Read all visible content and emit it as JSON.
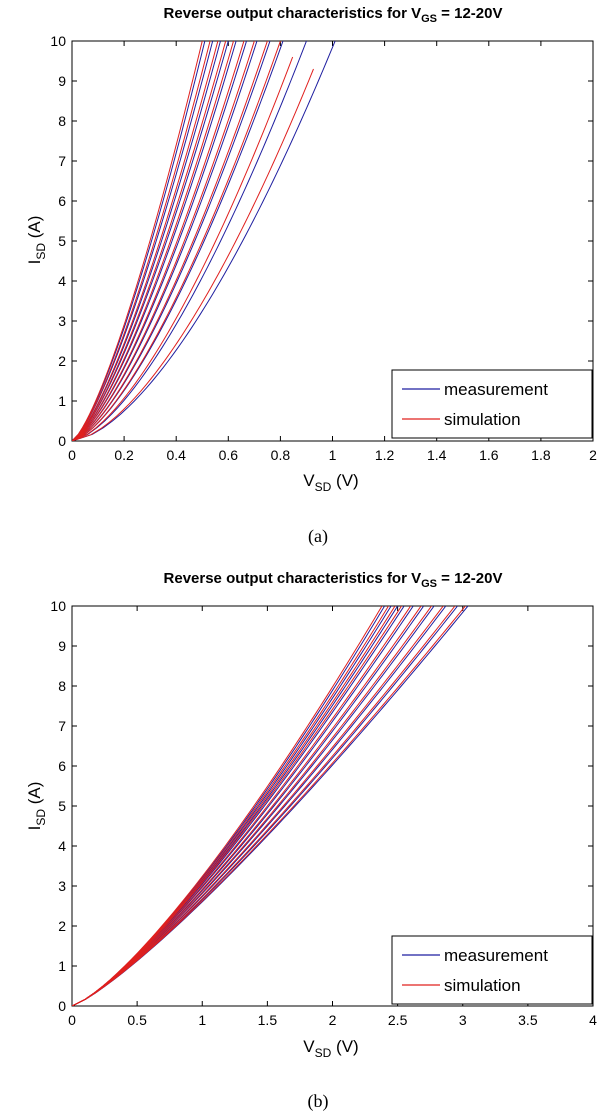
{
  "chart_data": [
    {
      "type": "line",
      "panel_label": "(a)",
      "title": {
        "main": "Reverse output characteristics for V",
        "sub": "GS",
        "tail": " = 12-20V"
      },
      "xlabel": {
        "main": "V",
        "sub": "SD",
        "tail": " (V)"
      },
      "ylabel": {
        "main": "I",
        "sub": "SD",
        "tail": " (A)"
      },
      "xlim": [
        0,
        2
      ],
      "ylim": [
        0,
        10
      ],
      "xticks": [
        0,
        0.2,
        0.4,
        0.6,
        0.8,
        1,
        1.2,
        1.4,
        1.6,
        1.8,
        2
      ],
      "xtick_labels": [
        "0",
        "0.2",
        "0.4",
        "0.6",
        "0.8",
        "1",
        "1.2",
        "1.4",
        "1.6",
        "1.8",
        "2"
      ],
      "yticks": [
        0,
        1,
        2,
        3,
        4,
        5,
        6,
        7,
        8,
        9,
        10
      ],
      "ytick_labels": [
        "0",
        "1",
        "2",
        "3",
        "4",
        "5",
        "6",
        "7",
        "8",
        "9",
        "10"
      ],
      "grid": false,
      "legend": {
        "position": "bottom-right",
        "entries": [
          "measurement",
          "simulation"
        ]
      },
      "series_colors": {
        "measurement": "#1f1fa0",
        "simulation": "#e0201e"
      },
      "measurement_x_at_10A": [
        0.51,
        0.54,
        0.57,
        0.6,
        0.63,
        0.67,
        0.71,
        0.76,
        0.81,
        0.9,
        1.01
      ],
      "simulation_x_at_10A": [
        0.5,
        0.53,
        0.56,
        0.59,
        0.62,
        0.66,
        0.7,
        0.75,
        0.8,
        0.87,
        0.97
      ],
      "curve_shape_exponent": [
        1.35,
        1.35,
        1.37,
        1.38,
        1.4,
        1.41,
        1.43,
        1.45,
        1.48,
        1.52,
        1.6
      ],
      "simulation_end_y": [
        10,
        10,
        10,
        10,
        10,
        10,
        10,
        10,
        10,
        9.6,
        9.3
      ]
    },
    {
      "type": "line",
      "panel_label": "(b)",
      "title": {
        "main": "Reverse output characteristics for V",
        "sub": "GS",
        "tail": " = 12-20V"
      },
      "xlabel": {
        "main": "V",
        "sub": "SD",
        "tail": " (V)"
      },
      "ylabel": {
        "main": "I",
        "sub": "SD",
        "tail": " (A)"
      },
      "xlim": [
        0,
        4
      ],
      "ylim": [
        0,
        10
      ],
      "xticks": [
        0,
        0.5,
        1,
        1.5,
        2,
        2.5,
        3,
        3.5,
        4
      ],
      "xtick_labels": [
        "0",
        "0.5",
        "1",
        "1.5",
        "2",
        "2.5",
        "3",
        "3.5",
        "4"
      ],
      "yticks": [
        0,
        1,
        2,
        3,
        4,
        5,
        6,
        7,
        8,
        9,
        10
      ],
      "ytick_labels": [
        "0",
        "1",
        "2",
        "3",
        "4",
        "5",
        "6",
        "7",
        "8",
        "9",
        "10"
      ],
      "grid": false,
      "legend": {
        "position": "bottom-right",
        "entries": [
          "measurement",
          "simulation"
        ]
      },
      "series_colors": {
        "measurement": "#1f1fa0",
        "simulation": "#e0201e"
      },
      "measurement_x_at_10A": [
        2.4,
        2.45,
        2.5,
        2.55,
        2.62,
        2.7,
        2.78,
        2.87,
        2.96,
        3.04
      ],
      "simulation_x_at_10A": [
        2.38,
        2.43,
        2.48,
        2.53,
        2.6,
        2.68,
        2.76,
        2.85,
        2.94,
        3.02
      ],
      "curve_shape_exponent": [
        1.3,
        1.29,
        1.28,
        1.27,
        1.26,
        1.25,
        1.24,
        1.23,
        1.22,
        1.21
      ],
      "simulation_end_y": [
        10,
        10,
        10,
        10,
        10,
        10,
        10,
        10,
        10,
        10
      ]
    }
  ]
}
